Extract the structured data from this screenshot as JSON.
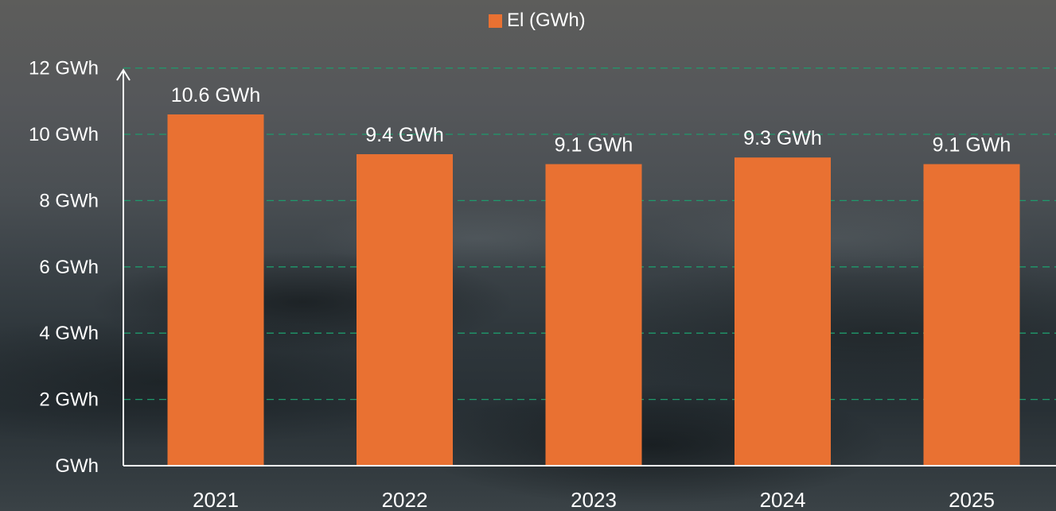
{
  "chart_data": {
    "type": "bar",
    "categories": [
      "2021",
      "2022",
      "2023",
      "2024",
      "2025"
    ],
    "series": [
      {
        "name": "El (GWh)",
        "values": [
          10.6,
          9.4,
          9.1,
          9.3,
          9.1
        ],
        "data_labels": [
          "10.6 GWh",
          "9.4 GWh",
          "9.1 GWh",
          "9.3 GWh",
          "9.1 GWh"
        ]
      }
    ],
    "ylim": [
      0,
      12
    ],
    "y_ticks": [
      0,
      2,
      4,
      6,
      8,
      10,
      12
    ],
    "y_tick_labels": [
      "GWh",
      "2 GWh",
      "4 GWh",
      "6 GWh",
      "8 GWh",
      "10 GWh",
      "12 GWh"
    ],
    "title": "",
    "xlabel": "",
    "ylabel": "",
    "grid": true,
    "legend_position": "top-center",
    "colors": {
      "bar": "#e97132",
      "grid": "#1f9a6c",
      "axis": "#ffffff",
      "text": "#ffffff"
    }
  }
}
